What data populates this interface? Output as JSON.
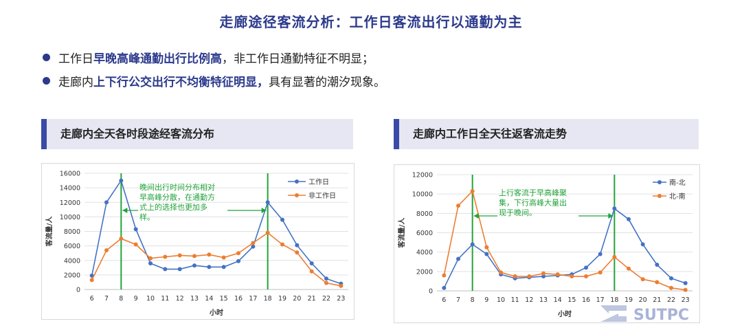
{
  "title": "走廊途径客流分析：工作日客流出行以通勤为主",
  "bullets": [
    {
      "pre": "工作日",
      "hl": "早晚高峰通勤出行比例高",
      "post": "，非工作日通勤特征不明显；"
    },
    {
      "pre": "走廊内",
      "hl": "上下行公交出行不均衡特征明显，",
      "post": "具有显著的潮汐现象。"
    }
  ],
  "panels": [
    {
      "heading": "走廊内全天各时段途经客流分布"
    },
    {
      "heading": "走廊内工作日全天往返客流走势"
    }
  ],
  "logo_text": "SUTPC",
  "colors": {
    "accent": "#2c3a8c",
    "blue_series": "#4472c4",
    "orange_series": "#ed7d31",
    "green_marker": "#22a33a"
  },
  "chart_data": [
    {
      "type": "line",
      "xlabel": "小时",
      "ylabel": "客流量/人",
      "x": [
        6,
        7,
        8,
        9,
        10,
        11,
        12,
        13,
        14,
        15,
        16,
        17,
        18,
        19,
        20,
        21,
        22,
        23
      ],
      "ylim": [
        0,
        16000
      ],
      "yticks": [
        0,
        2000,
        4000,
        6000,
        8000,
        10000,
        12000,
        14000,
        16000
      ],
      "series": [
        {
          "name": "工作日",
          "color": "#4472c4",
          "values": [
            1900,
            12000,
            15000,
            8300,
            3600,
            2800,
            2800,
            3300,
            3100,
            3100,
            3900,
            5900,
            12000,
            9600,
            6100,
            3600,
            1500,
            800
          ]
        },
        {
          "name": "非工作日",
          "color": "#ed7d31",
          "values": [
            1300,
            5400,
            7000,
            6200,
            4300,
            4500,
            4700,
            4600,
            4800,
            4400,
            5000,
            6400,
            7800,
            6200,
            5100,
            2500,
            900,
            500
          ]
        }
      ],
      "markers": [
        8,
        18
      ],
      "annotation": {
        "lines": [
          "晚间出行时间分布相对",
          "早高峰分散，在通勤方",
          "式上的选择也更加多",
          "样。"
        ]
      },
      "legend": "top-right",
      "grid": true
    },
    {
      "type": "line",
      "xlabel": "小时",
      "ylabel": "客流量/人",
      "x": [
        6,
        7,
        8,
        9,
        10,
        11,
        12,
        13,
        14,
        15,
        16,
        17,
        18,
        19,
        20,
        21,
        22,
        23
      ],
      "ylim": [
        0,
        12000
      ],
      "yticks": [
        0,
        2000,
        4000,
        6000,
        8000,
        10000,
        12000
      ],
      "series": [
        {
          "name": "南-北",
          "color": "#4472c4",
          "values": [
            300,
            3300,
            4800,
            3800,
            1700,
            1300,
            1400,
            1500,
            1600,
            1700,
            2400,
            3800,
            8500,
            7400,
            4800,
            2700,
            1300,
            800
          ]
        },
        {
          "name": "北-南",
          "color": "#ed7d31",
          "values": [
            1600,
            8800,
            10300,
            4500,
            1900,
            1500,
            1500,
            1800,
            1700,
            1500,
            1500,
            1900,
            3500,
            2300,
            1200,
            900,
            300,
            100
          ]
        }
      ],
      "markers": [
        8,
        18
      ],
      "annotation": {
        "lines": [
          "上行客流于早高峰聚",
          "集，下行高峰大量出",
          "现于晚间。"
        ]
      },
      "legend": "top-right",
      "grid": true
    }
  ]
}
